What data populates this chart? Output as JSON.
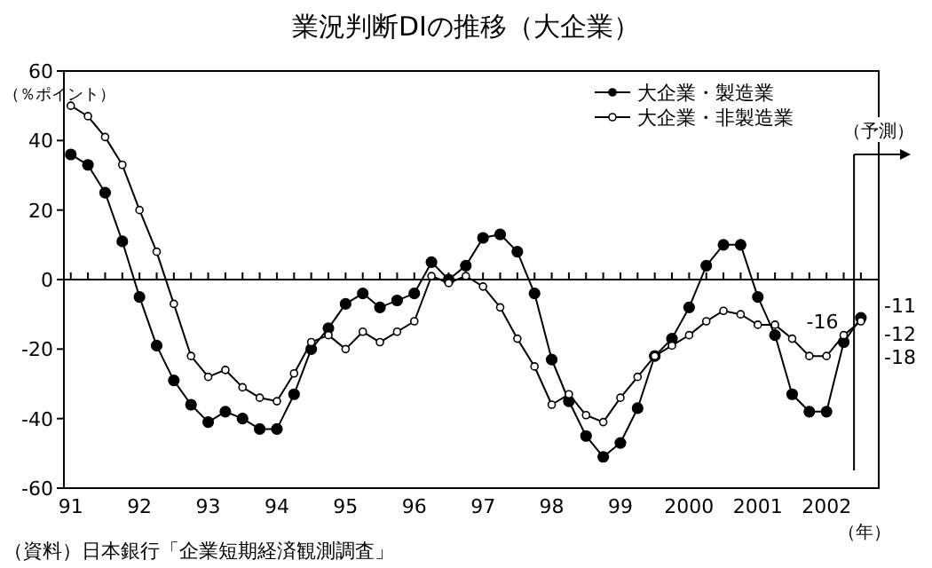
{
  "chart_data": {
    "type": "line",
    "title": "業況判断DIの推移（大企業）",
    "ylabel": "（％ポイント）",
    "xlabel": "（年）",
    "x": [
      1991,
      1991.25,
      1991.5,
      1991.75,
      1992,
      1992.25,
      1992.5,
      1992.75,
      1993,
      1993.25,
      1993.5,
      1993.75,
      1994,
      1994.25,
      1994.5,
      1994.75,
      1995,
      1995.25,
      1995.5,
      1995.75,
      1996,
      1996.25,
      1996.5,
      1996.75,
      1997,
      1997.25,
      1997.5,
      1997.75,
      1998,
      1998.25,
      1998.5,
      1998.75,
      1999,
      1999.25,
      1999.5,
      1999.75,
      2000,
      2000.25,
      2000.5,
      2000.75,
      2001,
      2001.25,
      2001.5,
      2001.75,
      2002,
      2002.25,
      2002.5
    ],
    "series": [
      {
        "name": "大企業・製造業",
        "color": "#000000",
        "marker": "circle",
        "values": [
          36,
          33,
          25,
          11,
          -5,
          -19,
          -29,
          -36,
          -41,
          -38,
          -40,
          -43,
          -43,
          -33,
          -20,
          -14,
          -7,
          -4,
          -8,
          -6,
          -4,
          5,
          0,
          4,
          12,
          13,
          8,
          -4,
          -23,
          -35,
          -45,
          -51,
          -47,
          -37,
          -22,
          -17,
          -8,
          4,
          10,
          10,
          -5,
          -16,
          -33,
          -38,
          -38,
          -18,
          -11
        ],
        "value_labels": [
          null,
          null,
          null,
          null,
          null,
          null,
          null,
          null,
          null,
          null,
          null,
          null,
          null,
          null,
          null,
          null,
          null,
          null,
          null,
          null,
          null,
          null,
          null,
          null,
          null,
          null,
          null,
          null,
          null,
          null,
          null,
          null,
          null,
          null,
          null,
          null,
          null,
          null,
          null,
          null,
          null,
          null,
          null,
          null,
          null,
          "-18",
          "-11"
        ]
      },
      {
        "name": "大企業・非製造業",
        "color": "#000000",
        "marker": "circle",
        "values": [
          50,
          47,
          41,
          33,
          20,
          8,
          -7,
          -22,
          -28,
          -26,
          -31,
          -34,
          -35,
          -27,
          -18,
          -16,
          -20,
          -15,
          -18,
          -15,
          -12,
          1,
          -1,
          1,
          -2,
          -8,
          -17,
          -25,
          -36,
          -33,
          -39,
          -41,
          -34,
          -28,
          -22,
          -19,
          -16,
          -12,
          -9,
          -10,
          -13,
          -13,
          -17,
          -22,
          -22,
          -16,
          -12
        ],
        "value_labels": [
          null,
          null,
          null,
          null,
          null,
          null,
          null,
          null,
          null,
          null,
          null,
          null,
          null,
          null,
          null,
          null,
          null,
          null,
          null,
          null,
          null,
          null,
          null,
          null,
          null,
          null,
          null,
          null,
          null,
          null,
          null,
          null,
          null,
          null,
          null,
          null,
          null,
          null,
          null,
          null,
          null,
          null,
          null,
          null,
          null,
          "-16",
          "-12"
        ]
      }
    ],
    "xlim": [
      1990.9,
      2002.76
    ],
    "xticks": [
      {
        "value": 1991,
        "label": "91"
      },
      {
        "value": 1991.25,
        "label": null
      },
      {
        "value": 1991.5,
        "label": null
      },
      {
        "value": 1991.75,
        "label": null
      },
      {
        "value": 1992,
        "label": "92"
      },
      {
        "value": 1992.25,
        "label": null
      },
      {
        "value": 1992.5,
        "label": null
      },
      {
        "value": 1992.75,
        "label": null
      },
      {
        "value": 1993,
        "label": "93"
      },
      {
        "value": 1993.25,
        "label": null
      },
      {
        "value": 1993.5,
        "label": null
      },
      {
        "value": 1993.75,
        "label": null
      },
      {
        "value": 1994,
        "label": "94"
      },
      {
        "value": 1994.25,
        "label": null
      },
      {
        "value": 1994.5,
        "label": null
      },
      {
        "value": 1994.75,
        "label": null
      },
      {
        "value": 1995,
        "label": "95"
      },
      {
        "value": 1995.25,
        "label": null
      },
      {
        "value": 1995.5,
        "label": null
      },
      {
        "value": 1995.75,
        "label": null
      },
      {
        "value": 1996,
        "label": "96"
      },
      {
        "value": 1996.25,
        "label": null
      },
      {
        "value": 1996.5,
        "label": null
      },
      {
        "value": 1996.75,
        "label": null
      },
      {
        "value": 1997,
        "label": "97"
      },
      {
        "value": 1997.25,
        "label": null
      },
      {
        "value": 1997.5,
        "label": null
      },
      {
        "value": 1997.75,
        "label": null
      },
      {
        "value": 1998,
        "label": "98"
      },
      {
        "value": 1998.25,
        "label": null
      },
      {
        "value": 1998.5,
        "label": null
      },
      {
        "value": 1998.75,
        "label": null
      },
      {
        "value": 1999,
        "label": "99"
      },
      {
        "value": 1999.25,
        "label": null
      },
      {
        "value": 1999.5,
        "label": null
      },
      {
        "value": 1999.75,
        "label": null
      },
      {
        "value": 2000,
        "label": "2000"
      },
      {
        "value": 2000.25,
        "label": null
      },
      {
        "value": 2000.5,
        "label": null
      },
      {
        "value": 2000.75,
        "label": null
      },
      {
        "value": 2001,
        "label": "2001"
      },
      {
        "value": 2001.25,
        "label": null
      },
      {
        "value": 2001.5,
        "label": null
      },
      {
        "value": 2001.75,
        "label": null
      },
      {
        "value": 2002,
        "label": "2002"
      },
      {
        "value": 2002.25,
        "label": null
      },
      {
        "value": 2002.5,
        "label": null
      }
    ],
    "ylim": [
      -60,
      60
    ],
    "yticks": [
      -60,
      -40,
      -20,
      0,
      20,
      40,
      60
    ],
    "ref_lines": [
      {
        "axis": "y",
        "value": 0
      },
      {
        "axis": "x",
        "value": 2002.4,
        "label": "（予測）"
      }
    ],
    "annotations": [
      "（資料）日本銀行「企業短期経済観測調査」"
    ],
    "legend": "top right",
    "grid": false
  }
}
